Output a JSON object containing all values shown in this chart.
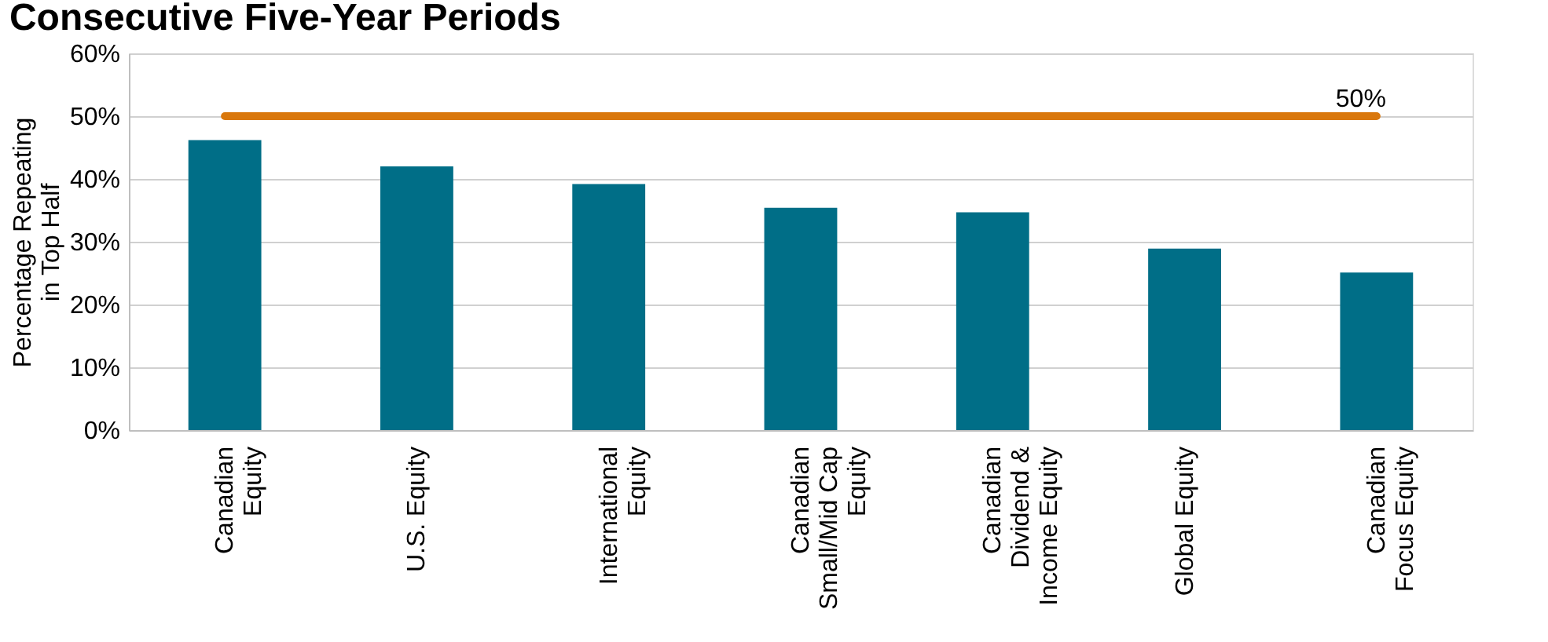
{
  "chart_data": {
    "type": "bar",
    "title": "Consecutive Five-Year Periods",
    "ylabel": "Percentage Repeating\nin Top Half",
    "categories": [
      "Canadian\nEquity",
      "U.S. Equity",
      "International\nEquity",
      "Canadian\nSmall/Mid Cap\nEquity",
      "Canadian\nDividend &\nIncome Equity",
      "Global Equity",
      "Canadian\nFocus Equity"
    ],
    "values": [
      46.2,
      42.0,
      39.2,
      35.4,
      34.7,
      28.9,
      25.1
    ],
    "color": "#006e87",
    "ylim": [
      0,
      60
    ],
    "yticks": [
      {
        "value": 0,
        "label": "0%"
      },
      {
        "value": 10,
        "label": "10%"
      },
      {
        "value": 20,
        "label": "20%"
      },
      {
        "value": 30,
        "label": "30%"
      },
      {
        "value": 40,
        "label": "40%"
      },
      {
        "value": 50,
        "label": "50%"
      },
      {
        "value": 60,
        "label": "60%"
      }
    ],
    "ref_lines": [
      {
        "axis": "y",
        "value": 50,
        "label": "50%",
        "color": "#d9770c"
      }
    ],
    "grid": "y"
  }
}
